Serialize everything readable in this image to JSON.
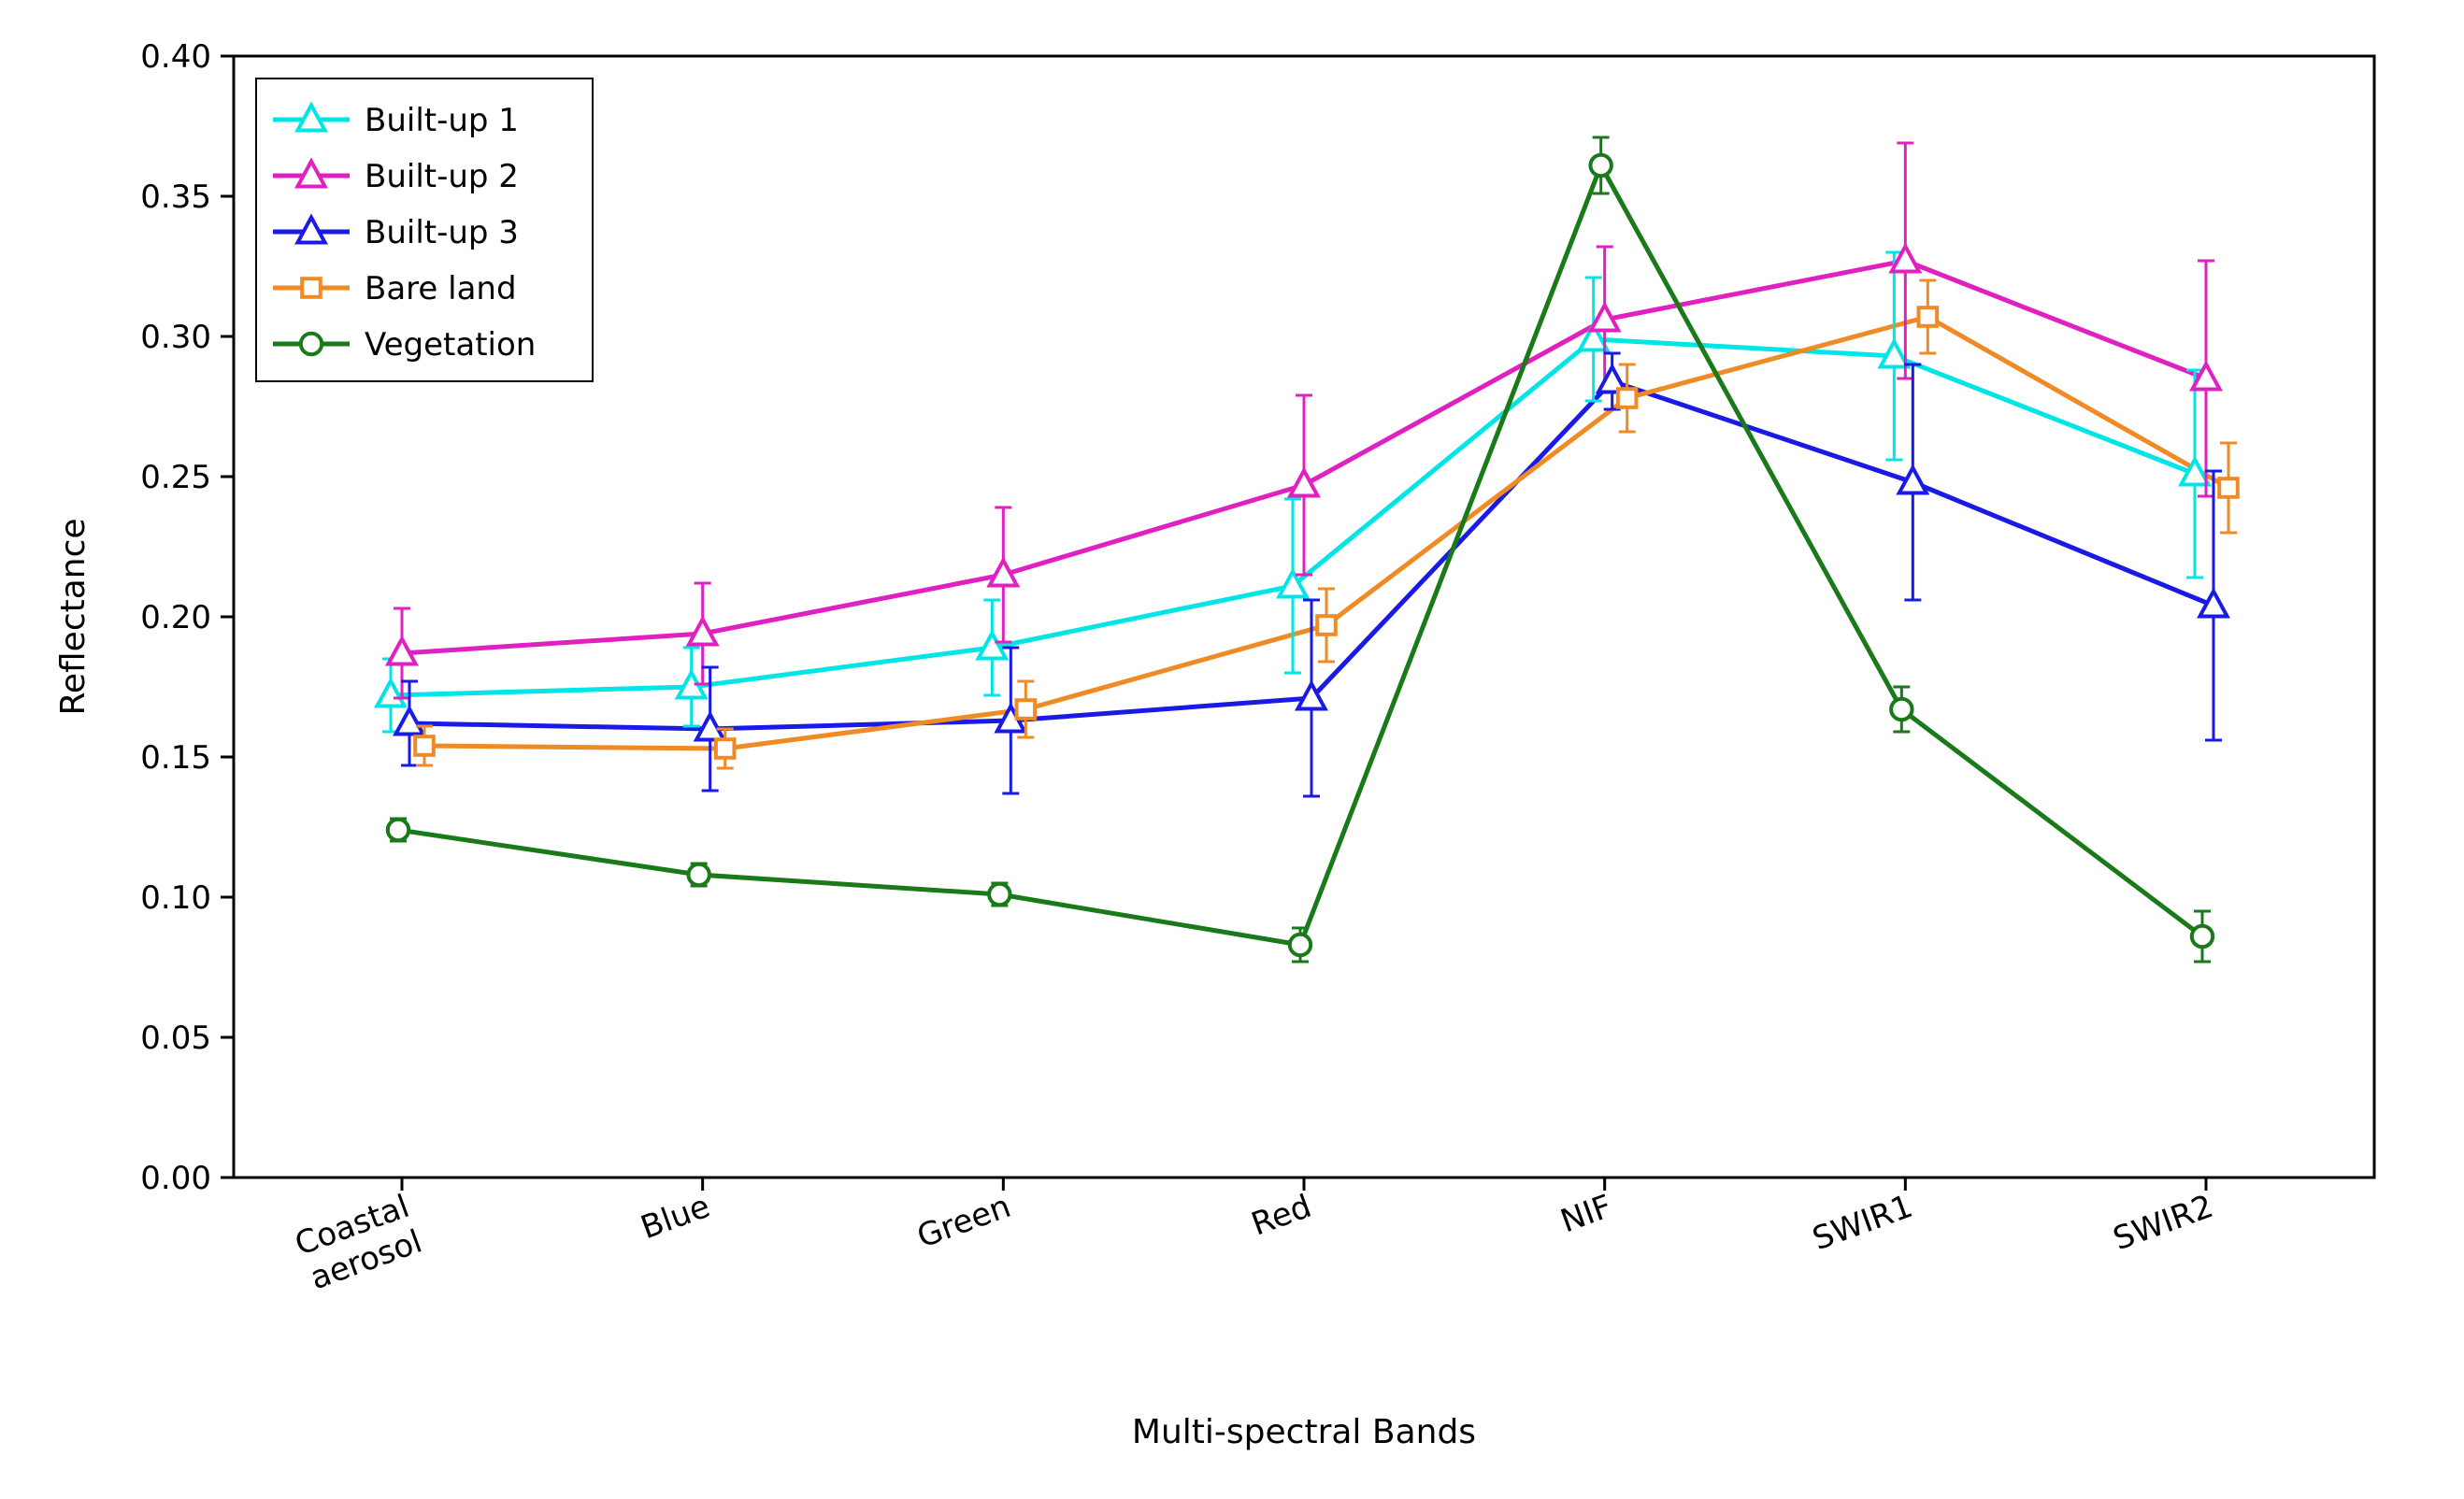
{
  "chart": {
    "type": "line-errorbar",
    "background_color": "#ffffff",
    "plot_border_color": "#000000",
    "plot_border_width": 3,
    "xlabel": "Multi-spectral Bands",
    "ylabel": "Reflectance",
    "label_fontsize": 36,
    "tick_fontsize": 34,
    "legend_fontsize": 34,
    "x_categories": [
      "Coastal aerosol",
      "Blue",
      "Green",
      "Red",
      "NIF",
      "SWIR1",
      "SWIR2"
    ],
    "x_tick_rotation": 20,
    "ylim": [
      0.0,
      0.4
    ],
    "ytick_step": 0.05,
    "yticks": [
      0.0,
      0.05,
      0.1,
      0.15,
      0.2,
      0.25,
      0.3,
      0.35,
      0.4
    ],
    "line_width": 5,
    "errorbar_width": 3,
    "errorbar_cap_width": 18,
    "marker_size": 14,
    "legend": {
      "position": "upper-left",
      "border_color": "#000000",
      "border_width": 2,
      "background_color": "#ffffff"
    },
    "series": [
      {
        "name": "Built-up 1",
        "color": "#00e5e5",
        "marker": "triangle",
        "marker_fill": "#ffffff",
        "marker_edge": "#00e5e5",
        "y": [
          0.172,
          0.175,
          0.189,
          0.211,
          0.299,
          0.293,
          0.251
        ],
        "err": [
          0.013,
          0.014,
          0.017,
          0.031,
          0.022,
          0.037,
          0.037
        ]
      },
      {
        "name": "Built-up 2",
        "color": "#e020c0",
        "marker": "triangle",
        "marker_fill": "#ffffff",
        "marker_edge": "#e020c0",
        "y": [
          0.187,
          0.194,
          0.215,
          0.247,
          0.306,
          0.327,
          0.285
        ],
        "err": [
          0.016,
          0.018,
          0.024,
          0.032,
          0.026,
          0.042,
          0.042
        ]
      },
      {
        "name": "Built-up 3",
        "color": "#1a1ae6",
        "marker": "triangle",
        "marker_fill": "#ffffff",
        "marker_edge": "#1a1ae6",
        "y": [
          0.162,
          0.16,
          0.163,
          0.171,
          0.284,
          0.248,
          0.204
        ],
        "err": [
          0.015,
          0.022,
          0.026,
          0.035,
          0.01,
          0.042,
          0.048
        ]
      },
      {
        "name": "Bare land",
        "color": "#f08a24",
        "marker": "square",
        "marker_fill": "#ffffff",
        "marker_edge": "#f08a24",
        "y": [
          0.154,
          0.153,
          0.167,
          0.197,
          0.278,
          0.307,
          0.246
        ],
        "err": [
          0.007,
          0.007,
          0.01,
          0.013,
          0.012,
          0.013,
          0.016
        ]
      },
      {
        "name": "Vegetation",
        "color": "#1a7a1a",
        "marker": "circle",
        "marker_fill": "#ffffff",
        "marker_edge": "#1a7a1a",
        "y": [
          0.124,
          0.108,
          0.101,
          0.083,
          0.361,
          0.167,
          0.086
        ],
        "err": [
          0.004,
          0.004,
          0.004,
          0.006,
          0.01,
          0.008,
          0.009
        ]
      }
    ]
  }
}
